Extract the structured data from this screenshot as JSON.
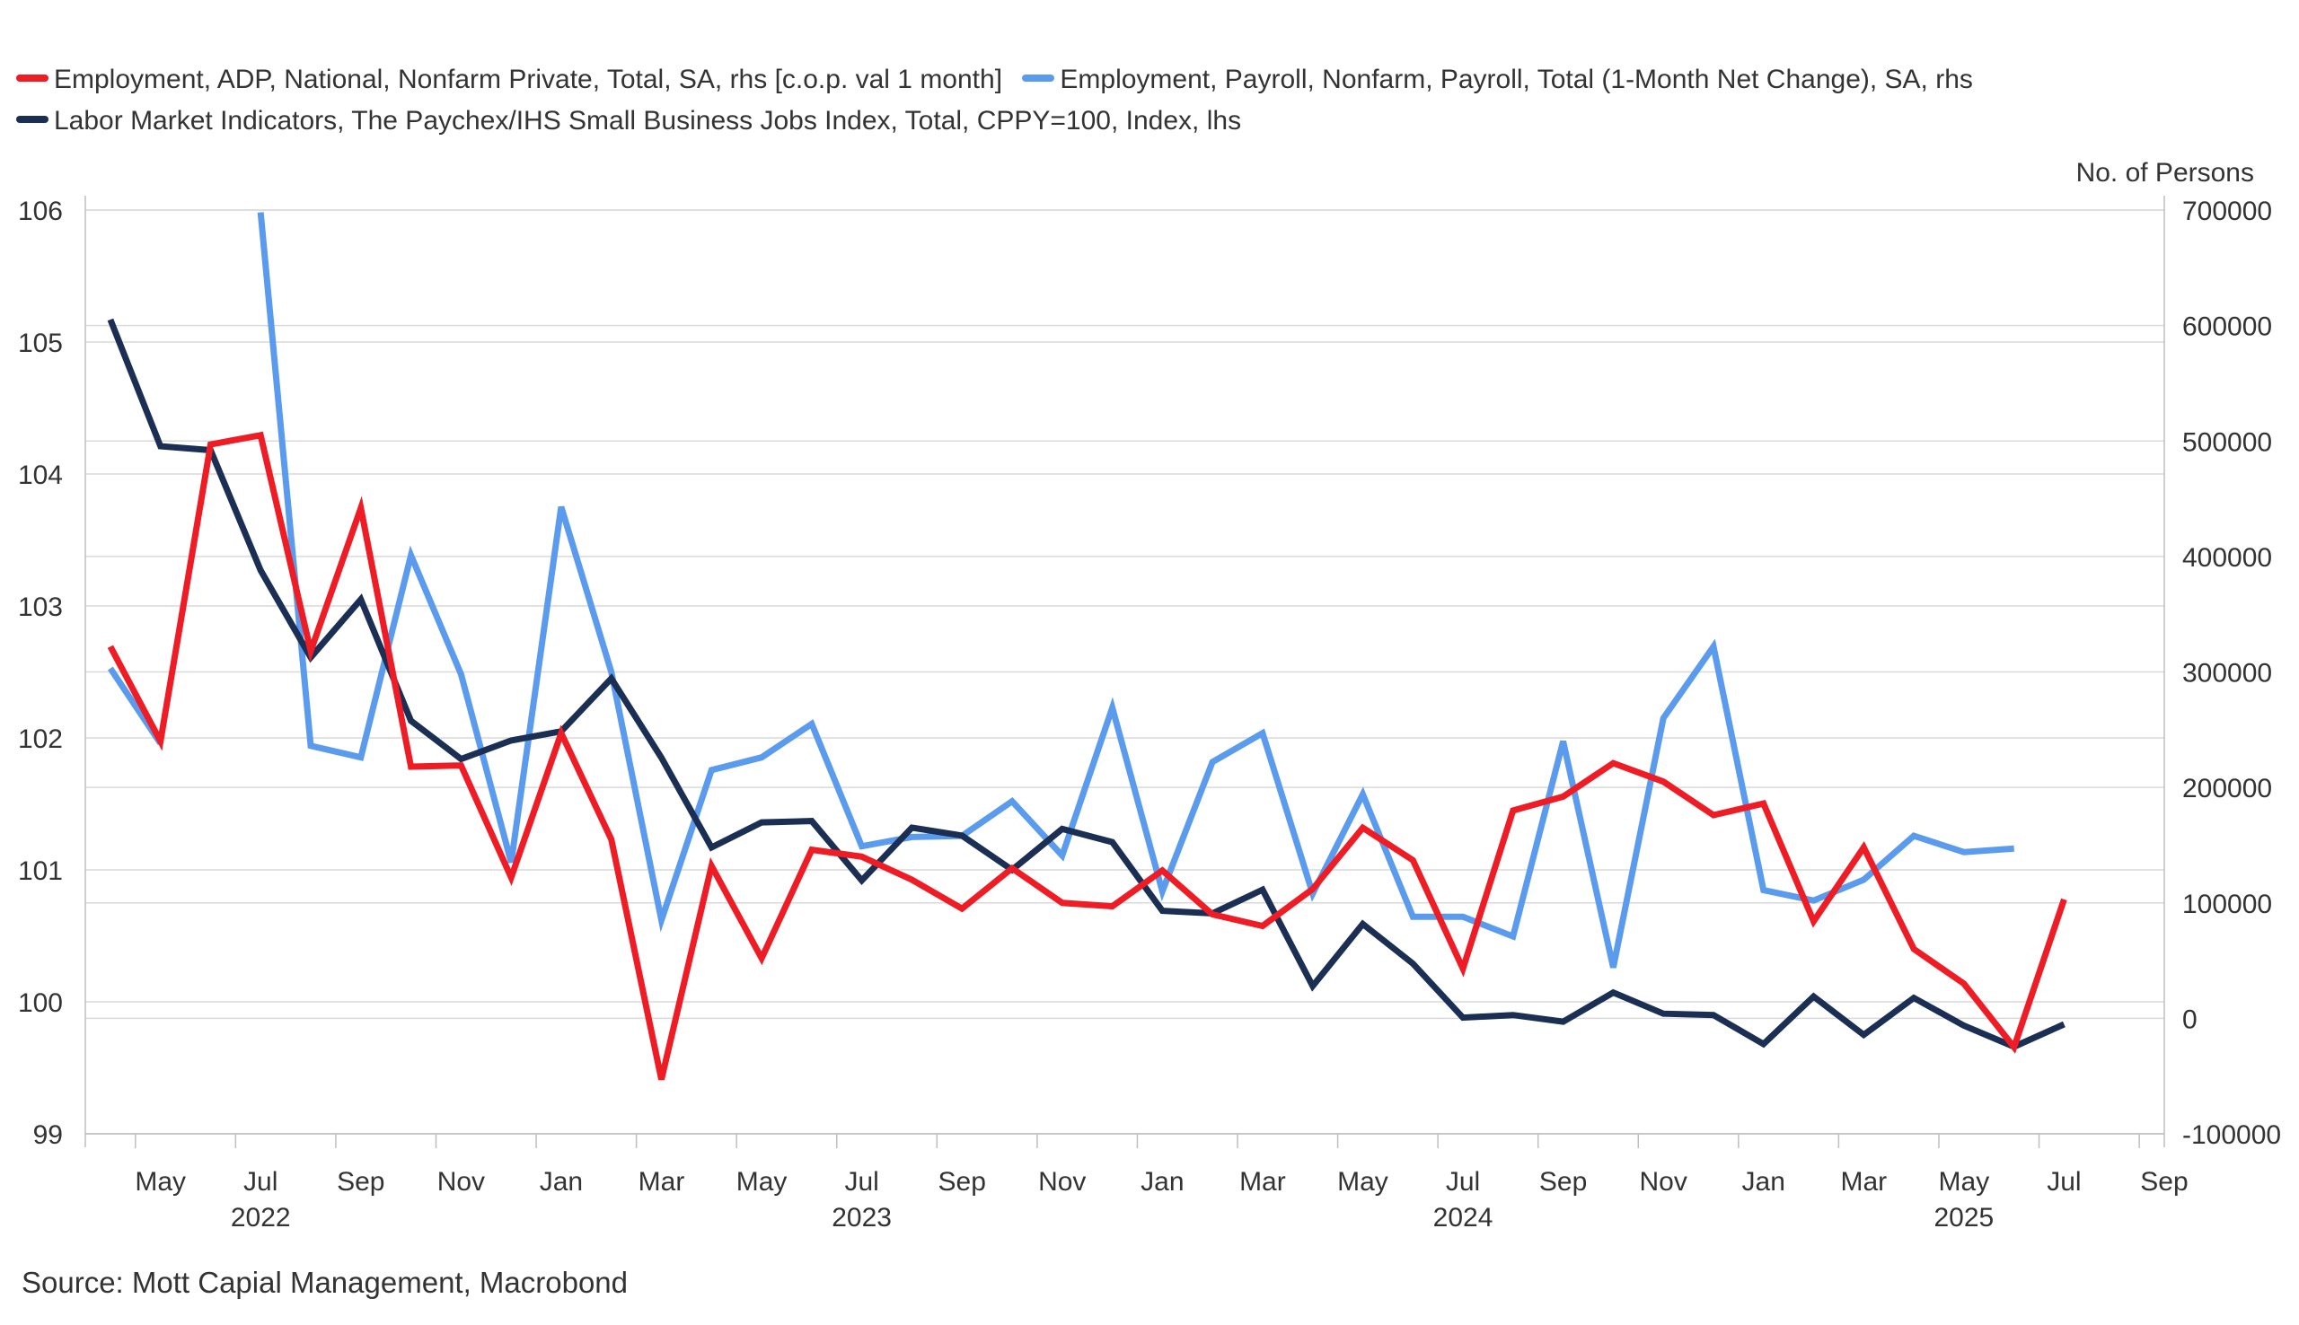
{
  "legend": {
    "adp_label": "Employment, ADP, National, Nonfarm Private, Total, SA, rhs [c.o.p. val 1 month]",
    "payroll_label": "Employment, Payroll, Nonfarm, Payroll, Total (1-Month Net Change), SA, rhs",
    "paychex_label": "Labor Market Indicators, The Paychex/IHS Small Business Jobs Index, Total, CPPY=100, Index, lhs",
    "placement": "top-left"
  },
  "source": "Source: Mott Capial Management, Macrobond",
  "chart_data": {
    "type": "line",
    "title": "",
    "grid": true,
    "left_axis": {
      "label": "",
      "range": [
        99,
        106
      ],
      "ticks": [
        99,
        100,
        101,
        102,
        103,
        104,
        105,
        106
      ],
      "tick_labels": [
        "99",
        "100",
        "101",
        "102",
        "103",
        "104",
        "105",
        "106"
      ]
    },
    "right_axis": {
      "label": "No. of Persons",
      "range": [
        -100000,
        700000
      ],
      "ticks": [
        -100000,
        0,
        100000,
        200000,
        300000,
        400000,
        500000,
        600000,
        700000
      ],
      "tick_labels": [
        "-100000",
        "0",
        "100000",
        "200000",
        "300000",
        "400000",
        "500000",
        "600000",
        "700000"
      ]
    },
    "x_axis": {
      "range": [
        "2022-04",
        "2025-09"
      ],
      "month_labels": [
        {
          "month": "2022-05",
          "label": "May"
        },
        {
          "month": "2022-07",
          "label": "Jul"
        },
        {
          "month": "2022-09",
          "label": "Sep"
        },
        {
          "month": "2022-11",
          "label": "Nov"
        },
        {
          "month": "2023-01",
          "label": "Jan"
        },
        {
          "month": "2023-03",
          "label": "Mar"
        },
        {
          "month": "2023-05",
          "label": "May"
        },
        {
          "month": "2023-07",
          "label": "Jul"
        },
        {
          "month": "2023-09",
          "label": "Sep"
        },
        {
          "month": "2023-11",
          "label": "Nov"
        },
        {
          "month": "2024-01",
          "label": "Jan"
        },
        {
          "month": "2024-03",
          "label": "Mar"
        },
        {
          "month": "2024-05",
          "label": "May"
        },
        {
          "month": "2024-07",
          "label": "Jul"
        },
        {
          "month": "2024-09",
          "label": "Sep"
        },
        {
          "month": "2024-11",
          "label": "Nov"
        },
        {
          "month": "2025-01",
          "label": "Jan"
        },
        {
          "month": "2025-03",
          "label": "Mar"
        },
        {
          "month": "2025-05",
          "label": "May"
        },
        {
          "month": "2025-07",
          "label": "Jul"
        },
        {
          "month": "2025-09",
          "label": "Sep"
        }
      ],
      "year_labels": [
        {
          "month": "2022-07",
          "label": "2022"
        },
        {
          "month": "2023-07",
          "label": "2023"
        },
        {
          "month": "2024-07",
          "label": "2024"
        },
        {
          "month": "2025-05",
          "label": "2025"
        }
      ]
    },
    "x": [
      "2022-04",
      "2022-05",
      "2022-06",
      "2022-07",
      "2022-08",
      "2022-09",
      "2022-10",
      "2022-11",
      "2022-12",
      "2023-01",
      "2023-02",
      "2023-03",
      "2023-04",
      "2023-05",
      "2023-06",
      "2023-07",
      "2023-08",
      "2023-09",
      "2023-10",
      "2023-11",
      "2023-12",
      "2024-01",
      "2024-02",
      "2024-03",
      "2024-04",
      "2024-05",
      "2024-06",
      "2024-07",
      "2024-08",
      "2024-09",
      "2024-10",
      "2024-11",
      "2024-12",
      "2025-01",
      "2025-02",
      "2025-03",
      "2025-04",
      "2025-05",
      "2025-06",
      "2025-07"
    ],
    "series": [
      {
        "name": "Employment, ADP, National, Nonfarm Private, Total, SA, rhs [c.o.p. val 1 month]",
        "axis": "right",
        "color": "#ee1c25",
        "values": [
          322000,
          240000,
          497000,
          505000,
          318000,
          442000,
          218000,
          219000,
          122000,
          247000,
          155000,
          -53000,
          132000,
          52000,
          146000,
          140000,
          120000,
          95000,
          130000,
          100000,
          97000,
          128000,
          90000,
          80000,
          112000,
          165000,
          137000,
          43000,
          180000,
          192000,
          221000,
          205000,
          176000,
          186000,
          84000,
          148000,
          60000,
          30000,
          -25000,
          103000
        ]
      },
      {
        "name": "Employment, Payroll, Nonfarm, Payroll, Total (1-Month Net Change), SA, rhs",
        "axis": "right",
        "color": "#5b9bee",
        "values": [
          303000,
          238000,
          null,
          698000,
          236000,
          226000,
          401000,
          298000,
          135000,
          443000,
          300000,
          85000,
          215000,
          226000,
          255000,
          149000,
          157000,
          158000,
          188000,
          141000,
          269000,
          110000,
          222000,
          247000,
          108000,
          194000,
          88000,
          88000,
          71000,
          240000,
          44000,
          260000,
          322000,
          111000,
          102000,
          120000,
          158000,
          144000,
          147000,
          null
        ]
      },
      {
        "name": "Labor Market Indicators, The Paychex/IHS Small Business Jobs Index, Total, CPPY=100, Index, lhs",
        "axis": "left",
        "color": "#1b2f55",
        "values": [
          105.17,
          104.21,
          104.18,
          103.27,
          102.61,
          103.05,
          102.13,
          101.84,
          101.98,
          102.05,
          102.45,
          101.85,
          101.17,
          101.36,
          101.37,
          100.92,
          101.32,
          101.26,
          101.0,
          101.31,
          101.21,
          100.69,
          100.67,
          100.85,
          100.12,
          100.59,
          100.29,
          99.88,
          99.9,
          99.85,
          100.07,
          99.91,
          99.9,
          99.68,
          100.04,
          99.75,
          100.03,
          99.82,
          99.66,
          99.83
        ]
      }
    ]
  }
}
